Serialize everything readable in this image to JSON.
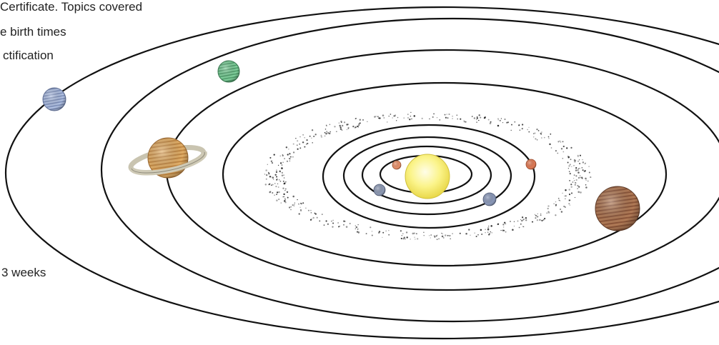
{
  "text_fragments": {
    "line1": "Certificate. Topics covered",
    "line2": "e birth times",
    "line3": "ctification",
    "line4": "3 weeks"
  },
  "colors": {
    "orbit": "#111111",
    "sun": "#f6ef6a",
    "background": "#ffffff"
  },
  "planets": [
    {
      "name": "mercury",
      "color": "#e8906a"
    },
    {
      "name": "venus",
      "color": "#e07a55"
    },
    {
      "name": "earth",
      "color": "#8e9ab4"
    },
    {
      "name": "mars",
      "color": "#8a98b8"
    },
    {
      "name": "jupiter",
      "color": "#a36b4c"
    },
    {
      "name": "saturn",
      "color": "#d9a15a"
    },
    {
      "name": "uranus",
      "color": "#6fc18e"
    },
    {
      "name": "neptune",
      "color": "#9fb0d6"
    }
  ]
}
